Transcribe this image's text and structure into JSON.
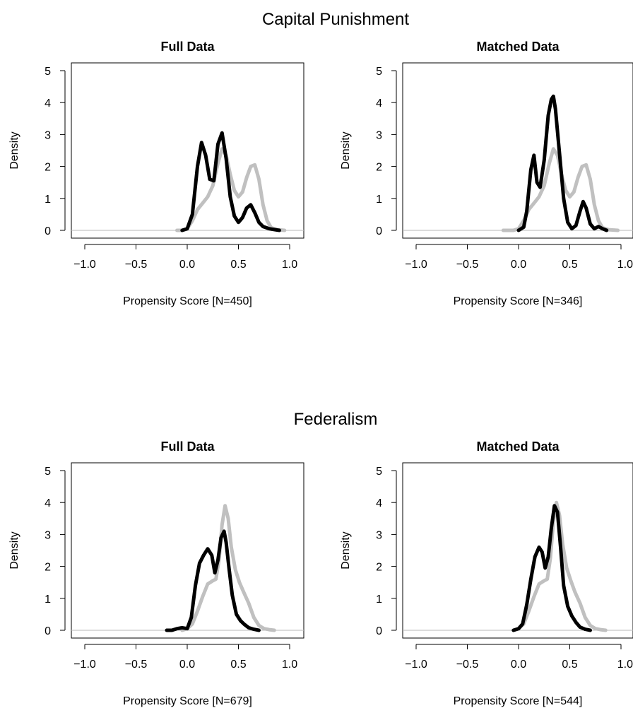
{
  "figure": {
    "groups": [
      {
        "title": "Capital Punishment"
      },
      {
        "title": "Federalism"
      }
    ]
  },
  "colors": {
    "series_1": "#000000",
    "series_2": "#c0c0c0",
    "baseline": "#b8b8b8"
  },
  "chart_data": [
    {
      "type": "line",
      "group": "Capital Punishment",
      "title": "Full Data",
      "xlabel": "Propensity Score [N=450]",
      "ylabel": "Density",
      "xlim": [
        -1.0,
        1.0
      ],
      "ylim": [
        0,
        5
      ],
      "xticks": [
        "-1.0",
        "-0.5",
        "0.0",
        "0.5",
        "1.0"
      ],
      "yticks": [
        "0",
        "1",
        "2",
        "3",
        "4",
        "5"
      ],
      "grid": false,
      "series": [
        {
          "x": [
            -0.05,
            0.0,
            0.05,
            0.1,
            0.14,
            0.18,
            0.22,
            0.26,
            0.3,
            0.34,
            0.38,
            0.42,
            0.46,
            0.5,
            0.54,
            0.58,
            0.62,
            0.66,
            0.7,
            0.74,
            0.8,
            0.86,
            0.9
          ],
          "y": [
            0.0,
            0.05,
            0.5,
            2.0,
            2.75,
            2.35,
            1.6,
            1.55,
            2.7,
            3.05,
            2.25,
            1.05,
            0.45,
            0.25,
            0.4,
            0.7,
            0.8,
            0.55,
            0.25,
            0.12,
            0.05,
            0.02,
            0.0
          ]
        },
        {
          "x": [
            -0.1,
            -0.05,
            0.0,
            0.05,
            0.1,
            0.15,
            0.2,
            0.25,
            0.3,
            0.34,
            0.38,
            0.42,
            0.46,
            0.5,
            0.54,
            0.58,
            0.62,
            0.66,
            0.7,
            0.74,
            0.78,
            0.82,
            0.88,
            0.95
          ],
          "y": [
            0.0,
            0.0,
            0.05,
            0.3,
            0.65,
            0.85,
            1.05,
            1.4,
            2.1,
            2.55,
            2.35,
            1.75,
            1.25,
            1.05,
            1.2,
            1.65,
            2.0,
            2.05,
            1.6,
            0.8,
            0.3,
            0.08,
            0.02,
            0.0
          ]
        }
      ]
    },
    {
      "type": "line",
      "group": "Capital Punishment",
      "title": "Matched Data",
      "xlabel": "Propensity Score [N=346]",
      "ylabel": "Density",
      "xlim": [
        -1.0,
        1.0
      ],
      "ylim": [
        0,
        5
      ],
      "xticks": [
        "-1.0",
        "-0.5",
        "0.0",
        "0.5",
        "1.0"
      ],
      "yticks": [
        "0",
        "1",
        "2",
        "3",
        "4",
        "5"
      ],
      "grid": false,
      "series": [
        {
          "x": [
            0.0,
            0.05,
            0.08,
            0.12,
            0.15,
            0.18,
            0.21,
            0.25,
            0.29,
            0.32,
            0.34,
            0.36,
            0.4,
            0.44,
            0.48,
            0.52,
            0.56,
            0.6,
            0.63,
            0.66,
            0.7,
            0.74,
            0.78,
            0.82,
            0.86
          ],
          "y": [
            0.0,
            0.1,
            0.6,
            1.9,
            2.35,
            1.5,
            1.35,
            2.2,
            3.6,
            4.1,
            4.2,
            3.8,
            2.4,
            1.0,
            0.25,
            0.05,
            0.15,
            0.6,
            0.9,
            0.7,
            0.2,
            0.05,
            0.12,
            0.05,
            0.0
          ]
        },
        {
          "x": [
            -0.15,
            -0.05,
            0.0,
            0.05,
            0.1,
            0.15,
            0.2,
            0.25,
            0.3,
            0.34,
            0.38,
            0.42,
            0.46,
            0.5,
            0.54,
            0.58,
            0.62,
            0.66,
            0.7,
            0.74,
            0.78,
            0.82,
            0.88,
            0.97
          ],
          "y": [
            0.0,
            0.0,
            0.05,
            0.3,
            0.65,
            0.85,
            1.05,
            1.4,
            2.1,
            2.55,
            2.35,
            1.75,
            1.25,
            1.05,
            1.2,
            1.65,
            2.0,
            2.05,
            1.6,
            0.8,
            0.3,
            0.08,
            0.02,
            0.0
          ]
        }
      ]
    },
    {
      "type": "line",
      "group": "Federalism",
      "title": "Full Data",
      "xlabel": "Propensity Score [N=679]",
      "ylabel": "Density",
      "xlim": [
        -1.0,
        1.0
      ],
      "ylim": [
        0,
        5
      ],
      "xticks": [
        "-1.0",
        "-0.5",
        "0.0",
        "0.5",
        "1.0"
      ],
      "yticks": [
        "0",
        "1",
        "2",
        "3",
        "4",
        "5"
      ],
      "grid": false,
      "series": [
        {
          "x": [
            -0.2,
            -0.15,
            -0.1,
            -0.05,
            0.0,
            0.04,
            0.08,
            0.12,
            0.16,
            0.2,
            0.24,
            0.27,
            0.3,
            0.33,
            0.36,
            0.38,
            0.41,
            0.44,
            0.48,
            0.52,
            0.56,
            0.6,
            0.65,
            0.7
          ],
          "y": [
            0.0,
            0.0,
            0.05,
            0.08,
            0.05,
            0.4,
            1.4,
            2.1,
            2.35,
            2.55,
            2.35,
            1.8,
            2.2,
            2.9,
            3.1,
            2.75,
            1.9,
            1.1,
            0.5,
            0.3,
            0.18,
            0.08,
            0.03,
            0.0
          ]
        },
        {
          "x": [
            -0.05,
            0.0,
            0.05,
            0.1,
            0.15,
            0.2,
            0.25,
            0.28,
            0.31,
            0.34,
            0.37,
            0.4,
            0.43,
            0.47,
            0.51,
            0.55,
            0.6,
            0.65,
            0.7,
            0.75,
            0.8,
            0.85
          ],
          "y": [
            0.0,
            0.05,
            0.2,
            0.6,
            1.05,
            1.45,
            1.55,
            1.6,
            2.2,
            3.3,
            3.9,
            3.5,
            2.6,
            1.9,
            1.5,
            1.2,
            0.85,
            0.4,
            0.15,
            0.05,
            0.02,
            0.0
          ]
        }
      ]
    },
    {
      "type": "line",
      "group": "Federalism",
      "title": "Matched Data",
      "xlabel": "Propensity Score [N=544]",
      "ylabel": "Density",
      "xlim": [
        -1.0,
        1.0
      ],
      "ylim": [
        0,
        5
      ],
      "xticks": [
        "-1.0",
        "-0.5",
        "0.0",
        "0.5",
        "1.0"
      ],
      "yticks": [
        "0",
        "1",
        "2",
        "3",
        "4",
        "5"
      ],
      "grid": false,
      "series": [
        {
          "x": [
            -0.05,
            0.0,
            0.04,
            0.08,
            0.12,
            0.16,
            0.2,
            0.23,
            0.26,
            0.29,
            0.32,
            0.35,
            0.38,
            0.41,
            0.44,
            0.48,
            0.52,
            0.56,
            0.6,
            0.65,
            0.7
          ],
          "y": [
            0.0,
            0.05,
            0.2,
            0.8,
            1.6,
            2.3,
            2.6,
            2.45,
            1.95,
            2.3,
            3.2,
            3.9,
            3.7,
            2.6,
            1.4,
            0.75,
            0.45,
            0.25,
            0.1,
            0.03,
            0.0
          ]
        },
        {
          "x": [
            -0.05,
            0.0,
            0.05,
            0.1,
            0.15,
            0.2,
            0.25,
            0.28,
            0.31,
            0.34,
            0.37,
            0.4,
            0.43,
            0.47,
            0.51,
            0.55,
            0.6,
            0.65,
            0.7,
            0.75,
            0.8,
            0.85
          ],
          "y": [
            0.0,
            0.05,
            0.2,
            0.6,
            1.05,
            1.45,
            1.55,
            1.6,
            2.25,
            3.4,
            4.0,
            3.6,
            2.7,
            1.95,
            1.55,
            1.2,
            0.85,
            0.4,
            0.15,
            0.05,
            0.02,
            0.0
          ]
        }
      ]
    }
  ]
}
